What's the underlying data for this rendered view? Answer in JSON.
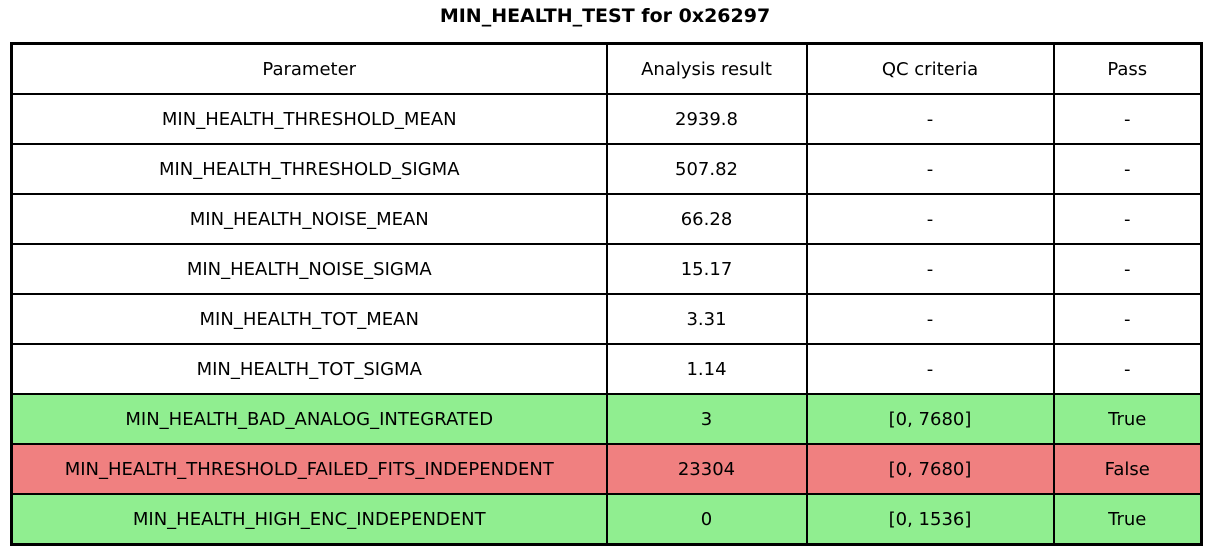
{
  "title": "MIN_HEALTH_TEST for 0x26297",
  "colors": {
    "pass": "#90EE90",
    "fail": "#F08080",
    "border": "#000000",
    "text": "#000000",
    "background": "#FFFFFF"
  },
  "chart_data": {
    "type": "table",
    "title": "MIN_HEALTH_TEST for 0x26297",
    "columns": [
      "Parameter",
      "Analysis result",
      "QC criteria",
      "Pass"
    ],
    "rows": [
      {
        "parameter": "MIN_HEALTH_THRESHOLD_MEAN",
        "result": "2939.8",
        "criteria": "-",
        "pass": "-",
        "status": "none"
      },
      {
        "parameter": "MIN_HEALTH_THRESHOLD_SIGMA",
        "result": "507.82",
        "criteria": "-",
        "pass": "-",
        "status": "none"
      },
      {
        "parameter": "MIN_HEALTH_NOISE_MEAN",
        "result": "66.28",
        "criteria": "-",
        "pass": "-",
        "status": "none"
      },
      {
        "parameter": "MIN_HEALTH_NOISE_SIGMA",
        "result": "15.17",
        "criteria": "-",
        "pass": "-",
        "status": "none"
      },
      {
        "parameter": "MIN_HEALTH_TOT_MEAN",
        "result": "3.31",
        "criteria": "-",
        "pass": "-",
        "status": "none"
      },
      {
        "parameter": "MIN_HEALTH_TOT_SIGMA",
        "result": "1.14",
        "criteria": "-",
        "pass": "-",
        "status": "none"
      },
      {
        "parameter": "MIN_HEALTH_BAD_ANALOG_INTEGRATED",
        "result": "3",
        "criteria": "[0, 7680]",
        "pass": "True",
        "status": "pass"
      },
      {
        "parameter": "MIN_HEALTH_THRESHOLD_FAILED_FITS_INDEPENDENT",
        "result": "23304",
        "criteria": "[0, 7680]",
        "pass": "False",
        "status": "fail"
      },
      {
        "parameter": "MIN_HEALTH_HIGH_ENC_INDEPENDENT",
        "result": "0",
        "criteria": "[0, 1536]",
        "pass": "True",
        "status": "pass"
      }
    ],
    "row_colors": [
      "#FFFFFF",
      "#FFFFFF",
      "#FFFFFF",
      "#FFFFFF",
      "#FFFFFF",
      "#FFFFFF",
      "#90EE90",
      "#F08080",
      "#90EE90"
    ]
  }
}
